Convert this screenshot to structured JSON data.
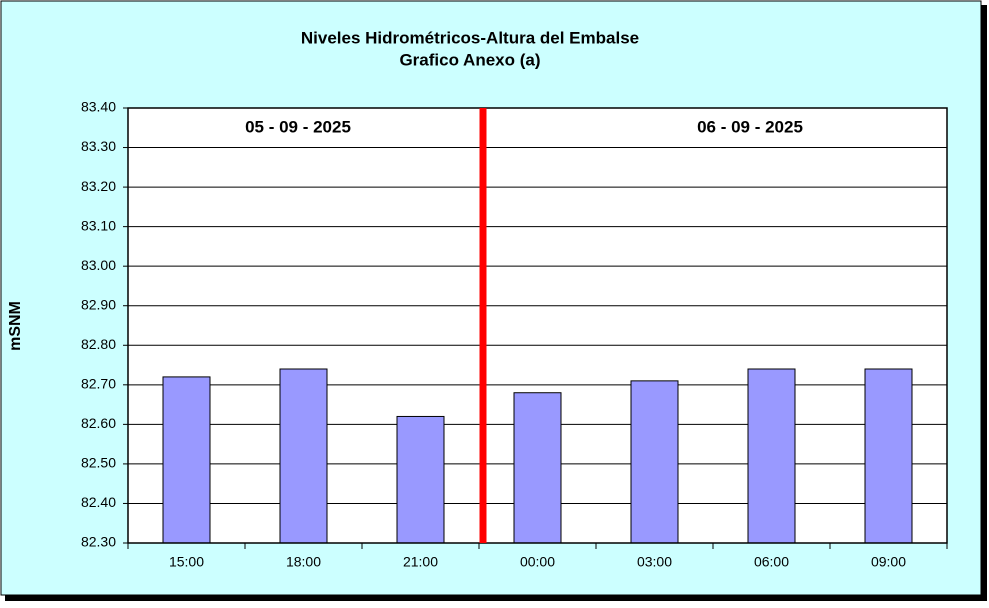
{
  "chart_data": {
    "type": "bar",
    "title": "Niveles Hidrométricos-Altura del Embalse",
    "subtitle": "Grafico Anexo (a)",
    "y_label": "mSNM",
    "annotations": [
      "05 - 09 - 2025",
      "06 - 09 - 2025"
    ],
    "categories": [
      "15:00",
      "18:00",
      "21:00",
      "00:00",
      "03:00",
      "06:00",
      "09:00"
    ],
    "values": [
      82.72,
      82.74,
      82.62,
      82.68,
      82.71,
      82.74,
      82.74
    ],
    "color": "#9999ff",
    "ylim": [
      82.3,
      83.4
    ],
    "yticks": [
      {
        "value": 82.3,
        "label": "82.30"
      },
      {
        "value": 82.4,
        "label": "82.40"
      },
      {
        "value": 82.5,
        "label": "82.50"
      },
      {
        "value": 82.6,
        "label": "82.60"
      },
      {
        "value": 82.7,
        "label": "82.70"
      },
      {
        "value": 82.8,
        "label": "82.80"
      },
      {
        "value": 82.9,
        "label": "82.90"
      },
      {
        "value": 83.0,
        "label": "83.00"
      },
      {
        "value": 83.1,
        "label": "83.10"
      },
      {
        "value": 83.2,
        "label": "83.20"
      },
      {
        "value": 83.3,
        "label": "83.30"
      },
      {
        "value": 83.4,
        "label": "83.40"
      }
    ],
    "grid": true
  }
}
